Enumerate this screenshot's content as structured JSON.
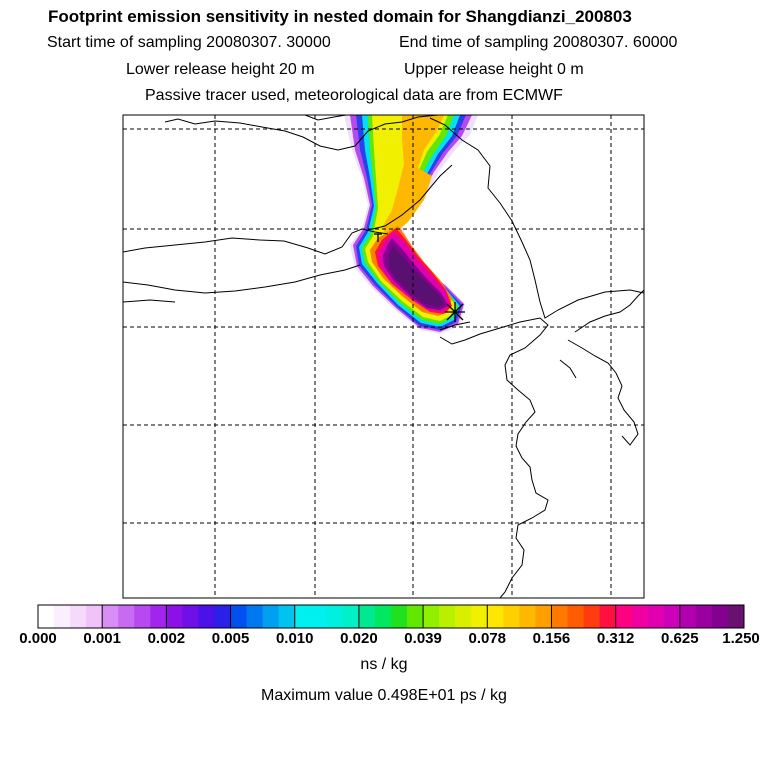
{
  "header": {
    "title": "Footprint emission sensitivity in nested domain for Shangdianzi_200803",
    "start_time": "Start time of sampling 20080307. 30000",
    "end_time": "End time of sampling 20080307. 60000",
    "lower_height": "Lower release height   20 m",
    "upper_height": "Upper release height    0 m",
    "tracer_info": "Passive tracer used, meteorological data are from ECMWF"
  },
  "colorbar": {
    "labels": [
      "0.000",
      "0.001",
      "0.002",
      "0.005",
      "0.010",
      "0.020",
      "0.039",
      "0.078",
      "0.156",
      "0.312",
      "0.625",
      "1.250"
    ],
    "colors": [
      [
        "#ffffff",
        "#fbeefe",
        "#f6dafc",
        "#efc3fa"
      ],
      [
        "#d98ef5",
        "#c96af2",
        "#b848ef",
        "#a324ec"
      ],
      [
        "#8e10e8",
        "#6f10e8",
        "#4c10e8",
        "#2a20e8"
      ],
      [
        "#0050f0",
        "#0078f0",
        "#00a0f0",
        "#00c4f0"
      ],
      [
        "#00f0f0",
        "#00f0f0",
        "#00f0e0",
        "#00f0c8"
      ],
      [
        "#00e890",
        "#00e860",
        "#20e020",
        "#60e800"
      ],
      [
        "#90f000",
        "#b8f000",
        "#d8f000",
        "#f0f000"
      ],
      [
        "#ffe600",
        "#ffd000",
        "#ffb800",
        "#ffa000"
      ],
      [
        "#ff7800",
        "#ff5c00",
        "#ff3c10",
        "#ff1040"
      ],
      [
        "#ff0080",
        "#f000a0",
        "#e000b0",
        "#cc00b8"
      ],
      [
        "#b000b0",
        "#9a00a0",
        "#840090",
        "#6a1070"
      ]
    ],
    "units": "ns / kg",
    "max_value": "Maximum value  0.498E+01 ps / kg"
  }
}
